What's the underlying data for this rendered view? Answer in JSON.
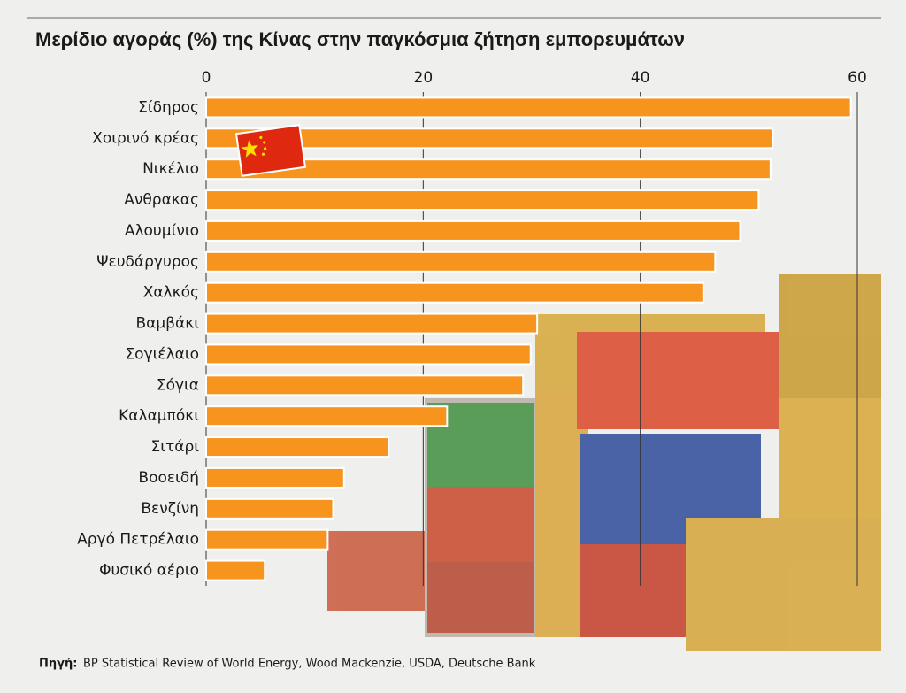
{
  "chart_data": {
    "type": "bar",
    "orientation": "horizontal",
    "title": "Μερίδιο αγοράς (%) της Κίνας στην παγκόσμια ζήτηση εμπορευμάτων",
    "categories": [
      "Σίδηρος",
      "Χοιρινό κρέας",
      "Νικέλιο",
      "Ανθρακας",
      "Αλουμίνιο",
      "Ψευδάργυρος",
      "Χαλκός",
      "Βαμβάκι",
      "Σογιέλαιο",
      "Σόγια",
      "Καλαμπόκι",
      "Σιτάρι",
      "Βοοειδή",
      "Βενζίνη",
      "Αργό Πετρέλαιο",
      "Φυσικό αέριο"
    ],
    "values": [
      59.4,
      52.2,
      52.0,
      50.9,
      49.2,
      46.9,
      45.8,
      30.5,
      29.9,
      29.2,
      22.2,
      16.8,
      12.7,
      11.7,
      11.2,
      5.4
    ],
    "color": "#f7941d",
    "xlim": [
      0,
      60
    ],
    "xticks": [
      0,
      20,
      40,
      60
    ],
    "grid": true,
    "source_label": "Πηγή:",
    "source": "BP Statistical Review of World Energy, Wood Mackenzie, USDA, Deutsche Bank"
  }
}
